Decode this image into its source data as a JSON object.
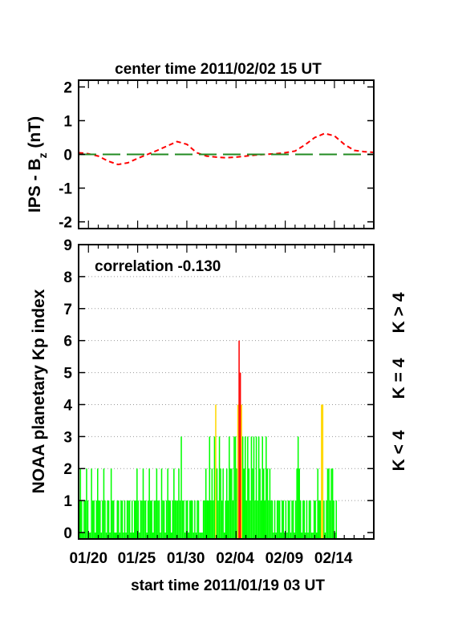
{
  "chart_data": [
    {
      "type": "line",
      "title": "center time 2011/02/02 15 UT",
      "ylabel": {
        "main": "IPS - B",
        "sub": "z",
        "unit": " (nT)"
      },
      "ylim": [
        -2.2,
        2.2
      ],
      "yticks": [
        2,
        1,
        0,
        -1,
        -2
      ],
      "xlim": [
        0,
        30
      ],
      "series": [
        {
          "color": "#ff0000",
          "style": "dashed",
          "x": [
            0,
            1,
            2,
            3,
            4,
            5,
            6,
            7,
            8,
            9,
            10,
            11,
            12,
            13,
            14,
            15,
            16,
            17,
            18,
            19,
            20,
            21,
            22,
            23,
            24,
            25,
            26,
            27,
            28,
            29,
            30
          ],
          "values": [
            0.05,
            0.02,
            -0.05,
            -0.2,
            -0.3,
            -0.25,
            -0.12,
            0.0,
            0.12,
            0.25,
            0.38,
            0.3,
            0.05,
            -0.05,
            -0.08,
            -0.1,
            -0.08,
            -0.05,
            -0.02,
            0.0,
            0.02,
            0.05,
            0.1,
            0.28,
            0.5,
            0.62,
            0.55,
            0.3,
            0.12,
            0.08,
            0.06
          ]
        },
        {
          "color": "#228b22",
          "style": "long-dashed",
          "x": [
            0,
            30
          ],
          "values": [
            0,
            0
          ]
        }
      ]
    },
    {
      "type": "bar",
      "annotation": "correlation -0.130",
      "ylabel": "NOAA planetary Kp index",
      "xlabel": "start time 2011/01/19 03 UT",
      "ylim": [
        -0.2,
        9
      ],
      "yticks": [
        0,
        1,
        2,
        3,
        4,
        5,
        6,
        7,
        8,
        9
      ],
      "xlim": [
        0,
        30
      ],
      "xticks": [
        {
          "x": 1.0,
          "label": "01/20"
        },
        {
          "x": 5.9,
          "label": "01/25"
        },
        {
          "x": 10.9,
          "label": "01/30"
        },
        {
          "x": 15.9,
          "label": "02/04"
        },
        {
          "x": 20.9,
          "label": "02/09"
        },
        {
          "x": 25.9,
          "label": "02/14"
        }
      ],
      "grid": "horizontal dotted",
      "legend": [
        {
          "label": "K < 4",
          "color": "#00ff00"
        },
        {
          "label": "K = 4",
          "color": "#ffd700"
        },
        {
          "label": "K > 4",
          "color": "#ff0000"
        }
      ],
      "colors": {
        "low": "#00ff00",
        "equal": "#ffd700",
        "high": "#ff0000"
      },
      "bin_days": 0.125,
      "values": [
        1,
        2,
        1,
        0,
        1,
        1,
        2,
        1,
        0,
        0,
        2,
        1,
        1,
        0,
        1,
        2,
        1,
        1,
        0,
        1,
        2,
        1,
        0,
        1,
        1,
        0,
        2,
        1,
        1,
        0,
        0,
        1,
        1,
        0,
        1,
        1,
        0,
        1,
        0,
        1,
        1,
        1,
        0,
        1,
        0,
        1,
        1,
        2,
        1,
        0,
        1,
        1,
        2,
        1,
        1,
        0,
        1,
        2,
        1,
        1,
        0,
        1,
        1,
        2,
        1,
        1,
        0,
        2,
        1,
        1,
        0,
        1,
        2,
        1,
        1,
        0,
        1,
        2,
        1,
        1,
        1,
        2,
        1,
        3,
        1,
        1,
        0,
        1,
        1,
        0,
        1,
        1,
        1,
        0,
        1,
        0,
        1,
        1,
        0,
        0,
        0,
        1,
        1,
        2,
        1,
        1,
        3,
        1,
        2,
        1,
        3,
        4,
        2,
        1,
        3,
        2,
        1,
        2,
        0,
        1,
        2,
        1,
        3,
        2,
        2,
        1,
        3,
        3,
        2,
        4,
        6,
        5,
        4,
        3,
        2,
        3,
        1,
        3,
        2,
        1,
        3,
        2,
        3,
        1,
        3,
        1,
        3,
        2,
        1,
        3,
        2,
        1,
        3,
        2,
        1,
        2,
        1,
        1,
        0,
        1,
        0,
        1,
        1,
        1,
        0,
        1,
        1,
        0,
        1,
        0,
        1,
        1,
        0,
        1,
        1,
        0,
        1,
        2,
        3,
        2,
        1,
        0,
        1,
        1,
        0,
        1,
        0,
        1,
        1,
        0,
        0,
        1,
        1,
        0,
        2,
        1,
        1,
        4,
        4,
        1,
        0,
        1,
        2,
        2,
        1,
        2,
        2,
        1,
        0,
        1
      ]
    }
  ]
}
